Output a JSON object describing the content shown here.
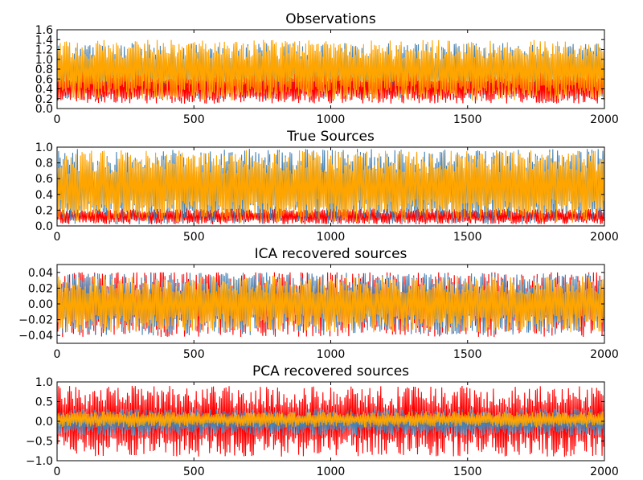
{
  "chart_data": [
    {
      "type": "line",
      "title": "Observations",
      "xlim": [
        0,
        2000
      ],
      "ylim": [
        0.0,
        1.6
      ],
      "xticks": [
        0,
        500,
        1000,
        1500,
        2000
      ],
      "xtick_labels": [
        "0",
        "500",
        "1000",
        "1500",
        "2000"
      ],
      "yticks": [
        0.0,
        0.2,
        0.4,
        0.6,
        0.8,
        1.0,
        1.2,
        1.4,
        1.6
      ],
      "ytick_labels": [
        "0.0",
        "0.2",
        "0.4",
        "0.6",
        "0.8",
        "1.0",
        "1.2",
        "1.4",
        "1.6"
      ],
      "grid": false,
      "series": [
        {
          "color": "#4682b4",
          "center": 0.75,
          "amplitude": 0.58,
          "floor": 0.2,
          "ceil": 1.35
        },
        {
          "color": "#ff0000",
          "center": 0.42,
          "amplitude": 0.32,
          "floor": 0.05,
          "ceil": 0.9
        },
        {
          "color": "#ffa500",
          "center": 0.78,
          "amplitude": 0.62,
          "floor": 0.15,
          "ceil": 1.45
        }
      ]
    },
    {
      "type": "line",
      "title": "True Sources",
      "xlim": [
        0,
        2000
      ],
      "ylim": [
        0.0,
        1.0
      ],
      "xticks": [
        0,
        500,
        1000,
        1500,
        2000
      ],
      "xtick_labels": [
        "0",
        "500",
        "1000",
        "1500",
        "2000"
      ],
      "yticks": [
        0.0,
        0.2,
        0.4,
        0.6,
        0.8,
        1.0
      ],
      "ytick_labels": [
        "0.0",
        "0.2",
        "0.4",
        "0.6",
        "0.8",
        "1.0"
      ],
      "grid": false,
      "series": [
        {
          "color": "#ff0000",
          "center": 0.12,
          "amplitude": 0.1,
          "floor": 0.0,
          "ceil": 0.3
        },
        {
          "color": "#4682b4",
          "center": 0.5,
          "amplitude": 0.48,
          "floor": 0.02,
          "ceil": 0.98
        },
        {
          "color": "#ffa500",
          "center": 0.5,
          "amplitude": 0.46,
          "floor": 0.03,
          "ceil": 0.96
        }
      ]
    },
    {
      "type": "line",
      "title": "ICA recovered sources",
      "xlim": [
        0,
        2000
      ],
      "ylim": [
        -0.05,
        0.05
      ],
      "xticks": [
        0,
        500,
        1000,
        1500,
        2000
      ],
      "xtick_labels": [
        "0",
        "500",
        "1000",
        "1500",
        "2000"
      ],
      "yticks": [
        -0.04,
        -0.02,
        0.0,
        0.02,
        0.04
      ],
      "ytick_labels": [
        "−0.04",
        "−0.02",
        "0.00",
        "0.02",
        "0.04"
      ],
      "grid": false,
      "series": [
        {
          "color": "#ff0000",
          "center": 0.0,
          "amplitude": 0.042,
          "floor": -0.045,
          "ceil": 0.04
        },
        {
          "color": "#4682b4",
          "center": 0.0,
          "amplitude": 0.04,
          "floor": -0.042,
          "ceil": 0.042
        },
        {
          "color": "#ffa500",
          "center": 0.0,
          "amplitude": 0.036,
          "floor": -0.036,
          "ceil": 0.036
        }
      ]
    },
    {
      "type": "line",
      "title": "PCA recovered sources",
      "xlim": [
        0,
        2000
      ],
      "ylim": [
        -1.0,
        1.0
      ],
      "xticks": [
        0,
        500,
        1000,
        1500,
        2000
      ],
      "xtick_labels": [
        "0",
        "500",
        "1000",
        "1500",
        "2000"
      ],
      "yticks": [
        -1.0,
        -0.5,
        0.0,
        0.5,
        1.0
      ],
      "ytick_labels": [
        "−1.0",
        "−0.5",
        "0.0",
        "0.5",
        "1.0"
      ],
      "grid": false,
      "series": [
        {
          "color": "#ff0000",
          "center": 0.0,
          "amplitude": 0.9,
          "floor": -0.95,
          "ceil": 0.97
        },
        {
          "color": "#4682b4",
          "center": -0.02,
          "amplitude": 0.35,
          "floor": -0.4,
          "ceil": 0.32
        },
        {
          "color": "#ffa500",
          "center": 0.05,
          "amplitude": 0.2,
          "floor": -0.15,
          "ceil": 0.25
        }
      ]
    }
  ]
}
